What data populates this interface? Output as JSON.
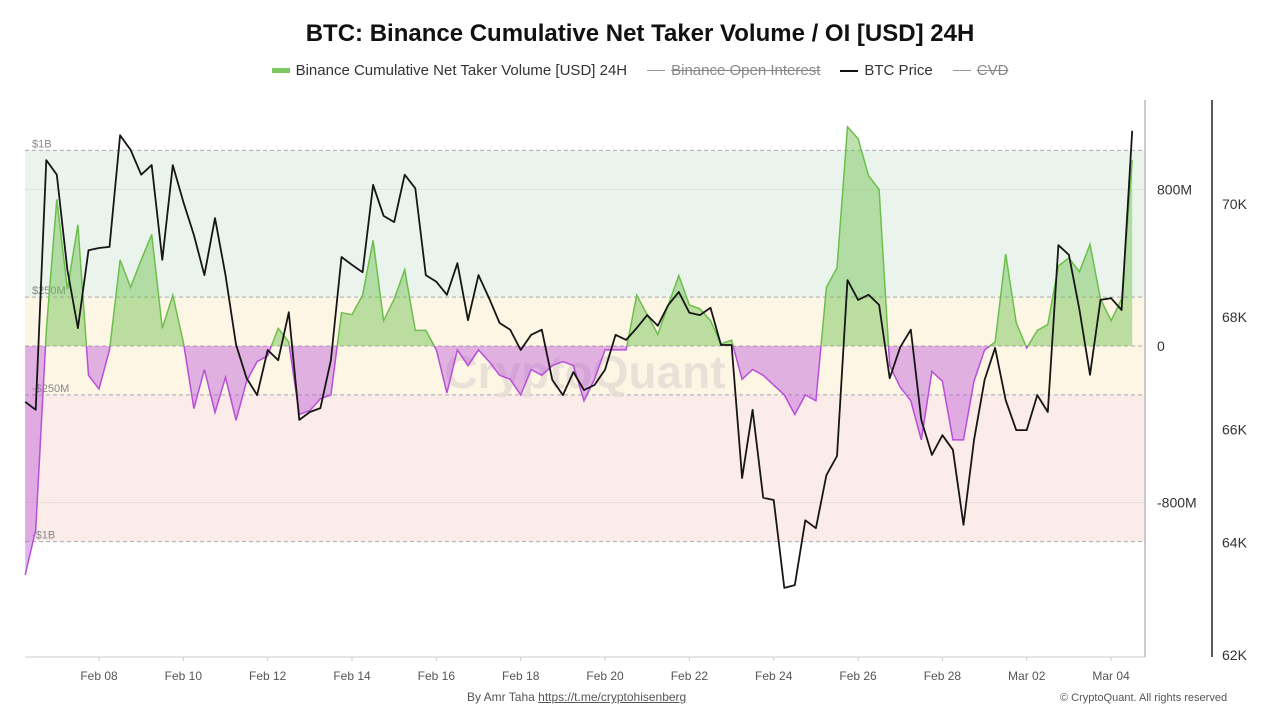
{
  "title": "BTC: Binance Cumulative Net Taker Volume / OI [USD] 24H",
  "legend": [
    {
      "label": "Binance Cumulative Net Taker Volume [USD] 24H",
      "color": "#7cc862",
      "enabled": true
    },
    {
      "label": "Binance Open Interest",
      "color": "#999999",
      "enabled": false
    },
    {
      "label": "BTC Price",
      "color": "#111111",
      "enabled": true
    },
    {
      "label": "CVD",
      "color": "#999999",
      "enabled": false
    }
  ],
  "watermark": "CryptoQuant",
  "footer": {
    "by": "By Amr Taha",
    "link": "https://t.me/cryptohisenberg",
    "copyright": "© CryptoQuant. All rights reserved"
  },
  "chart_data": {
    "type": "area+line",
    "title": "BTC: Binance Cumulative Net Taker Volume / OI [USD] 24H",
    "x_ticks": [
      "Feb 08",
      "Feb 10",
      "Feb 12",
      "Feb 14",
      "Feb 16",
      "Feb 18",
      "Feb 20",
      "Feb 22",
      "Feb 24",
      "Feb 26",
      "Feb 28",
      "Mar 02",
      "Mar 04"
    ],
    "left_axis": {
      "unit": "USD",
      "ticks": [
        {
          "value": 800,
          "label": "800M"
        },
        {
          "value": 0,
          "label": "0"
        },
        {
          "value": -800,
          "label": "-800M"
        }
      ],
      "ylim_millions": [
        -1590,
        1257
      ]
    },
    "right_axis": {
      "ticks": [
        {
          "value": 62000,
          "label": "62K"
        },
        {
          "value": 64000,
          "label": "64K"
        },
        {
          "value": 66000,
          "label": "66K"
        },
        {
          "value": 68000,
          "label": "68K"
        },
        {
          "value": 70000,
          "label": "70K"
        }
      ],
      "ylim": [
        61965,
        71850
      ]
    },
    "bands": [
      {
        "from": 250,
        "to": 1000,
        "color": "#eaf4ec"
      },
      {
        "from": -250,
        "to": 250,
        "color": "#fdf6e5"
      },
      {
        "from": -1000,
        "to": -250,
        "color": "#fbebe9"
      }
    ],
    "reference_lines": [
      {
        "value": 1000,
        "label": "$1B"
      },
      {
        "value": 250,
        "label": "$250M"
      },
      {
        "value": 0,
        "label": ""
      },
      {
        "value": -250,
        "label": "-$250M"
      },
      {
        "value": -1000,
        "label": "-$1B"
      }
    ],
    "gridlines": [
      800,
      -800
    ],
    "colors": {
      "positive_line": "#6cbf4c",
      "positive_fill": "rgba(108,191,76,0.45)",
      "negative_line": "#b84fd8",
      "negative_fill": "rgba(184,79,216,0.42)",
      "price": "#161616"
    },
    "x": [
      "Feb 06 06:00",
      "Feb 06 12:00",
      "Feb 06 18:00",
      "Feb 07 00:00",
      "Feb 07 06:00",
      "Feb 07 12:00",
      "Feb 07 18:00",
      "Feb 08 00:00",
      "Feb 08 06:00",
      "Feb 08 12:00",
      "Feb 08 18:00",
      "Feb 09 00:00",
      "Feb 09 06:00",
      "Feb 09 12:00",
      "Feb 09 18:00",
      "Feb 10 00:00",
      "Feb 10 06:00",
      "Feb 10 12:00",
      "Feb 10 18:00",
      "Feb 11 00:00",
      "Feb 11 06:00",
      "Feb 11 12:00",
      "Feb 11 18:00",
      "Feb 12 00:00",
      "Feb 12 06:00",
      "Feb 12 12:00",
      "Feb 12 18:00",
      "Feb 13 00:00",
      "Feb 13 06:00",
      "Feb 13 12:00",
      "Feb 13 18:00",
      "Feb 14 00:00",
      "Feb 14 06:00",
      "Feb 14 12:00",
      "Feb 14 18:00",
      "Feb 15 00:00",
      "Feb 15 06:00",
      "Feb 15 12:00",
      "Feb 15 18:00",
      "Feb 16 00:00",
      "Feb 16 06:00",
      "Feb 16 12:00",
      "Feb 16 18:00",
      "Feb 17 00:00",
      "Feb 17 06:00",
      "Feb 17 12:00",
      "Feb 17 18:00",
      "Feb 18 00:00",
      "Feb 18 06:00",
      "Feb 18 12:00",
      "Feb 18 18:00",
      "Feb 19 00:00",
      "Feb 19 06:00",
      "Feb 19 12:00",
      "Feb 19 18:00",
      "Feb 20 00:00",
      "Feb 20 06:00",
      "Feb 20 12:00",
      "Feb 20 18:00",
      "Feb 21 00:00",
      "Feb 21 06:00",
      "Feb 21 12:00",
      "Feb 21 18:00",
      "Feb 22 00:00",
      "Feb 22 06:00",
      "Feb 22 12:00",
      "Feb 22 18:00",
      "Feb 23 00:00",
      "Feb 23 06:00",
      "Feb 23 12:00",
      "Feb 23 18:00",
      "Feb 24 00:00",
      "Feb 24 06:00",
      "Feb 24 12:00",
      "Feb 24 18:00",
      "Feb 25 00:00",
      "Feb 25 06:00",
      "Feb 25 12:00",
      "Feb 25 18:00",
      "Feb 26 00:00",
      "Feb 26 06:00",
      "Feb 26 12:00",
      "Feb 26 18:00",
      "Feb 27 00:00",
      "Feb 27 06:00",
      "Feb 27 12:00",
      "Feb 27 18:00",
      "Feb 28 00:00",
      "Feb 28 06:00",
      "Feb 28 12:00",
      "Feb 28 18:00",
      "Mar 01 00:00",
      "Mar 01 06:00",
      "Mar 01 12:00",
      "Mar 01 18:00",
      "Mar 02 00:00",
      "Mar 02 06:00",
      "Mar 02 12:00",
      "Mar 02 18:00",
      "Mar 03 00:00",
      "Mar 03 06:00",
      "Mar 03 12:00",
      "Mar 03 18:00",
      "Mar 04 00:00",
      "Mar 04 06:00",
      "Mar 04 12:00"
    ],
    "series": [
      {
        "name": "Binance Cumulative Net Taker Volume [USD] 24H",
        "unit": "millions USD",
        "axis": "left",
        "values": [
          -1170,
          -940,
          80,
          750,
          290,
          620,
          -150,
          -220,
          -20,
          440,
          300,
          440,
          570,
          90,
          260,
          20,
          -320,
          -120,
          -340,
          -160,
          -380,
          -180,
          -80,
          -50,
          90,
          20,
          -350,
          -330,
          -270,
          -250,
          170,
          160,
          260,
          540,
          130,
          240,
          390,
          80,
          80,
          -20,
          -240,
          -20,
          -100,
          -20,
          -80,
          -150,
          -170,
          -250,
          -120,
          -150,
          -100,
          -80,
          -100,
          -280,
          -170,
          -20,
          -20,
          -20,
          260,
          160,
          60,
          210,
          360,
          210,
          190,
          130,
          10,
          30,
          -170,
          -120,
          -150,
          -200,
          -250,
          -350,
          -250,
          -280,
          300,
          400,
          1120,
          1060,
          870,
          800,
          -100,
          -210,
          -280,
          -480,
          -130,
          -180,
          -480,
          -480,
          -180,
          -20,
          20,
          470,
          120,
          -10,
          80,
          110,
          410,
          450,
          380,
          520,
          240,
          130,
          240,
          950
        ]
      },
      {
        "name": "BTC Price",
        "unit": "USD",
        "axis": "right",
        "values": [
          66490,
          66350,
          70780,
          70520,
          68830,
          67800,
          69180,
          69220,
          69240,
          71220,
          70960,
          70520,
          70690,
          69010,
          70690,
          70040,
          69450,
          68740,
          69750,
          68740,
          67500,
          66910,
          66610,
          67410,
          67230,
          68080,
          66170,
          66310,
          66380,
          67230,
          69060,
          68920,
          68790,
          70340,
          69790,
          69680,
          70520,
          70280,
          68740,
          68620,
          68390,
          68950,
          67940,
          68740,
          68330,
          67890,
          67770,
          67410,
          67680,
          67770,
          66880,
          66610,
          67020,
          66700,
          66790,
          67060,
          67680,
          67590,
          67800,
          68030,
          67840,
          68210,
          68440,
          68070,
          68030,
          68160,
          67500,
          67500,
          65140,
          66350,
          64790,
          64750,
          63190,
          63240,
          64390,
          64250,
          65190,
          65530,
          68650,
          68300,
          68390,
          68210,
          66910,
          67460,
          67770,
          66170,
          65550,
          65900,
          65640,
          64310,
          65810,
          66880,
          67450,
          66520,
          65990,
          65990,
          66610,
          66310,
          69270,
          69100,
          68120,
          66970,
          68300,
          68330,
          68120,
          71300
        ]
      }
    ]
  }
}
